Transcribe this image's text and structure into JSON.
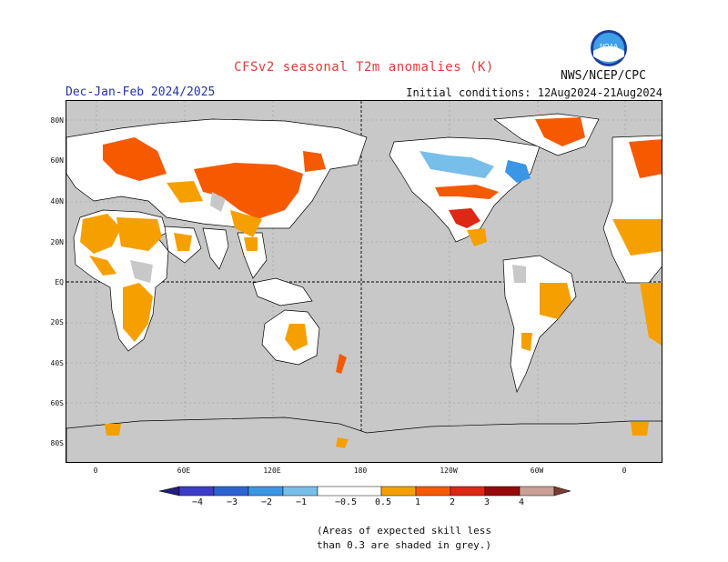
{
  "title": "CFSv2 seasonal T2m anomalies (K)",
  "season": "Dec-Jan-Feb 2024/2025",
  "initial_conditions": "Initial conditions: 12Aug2024-21Aug2024",
  "agency": "NWS/NCEP/CPC",
  "logo_text": "NOAA",
  "lat_labels": [
    "80N",
    "60N",
    "40N",
    "20N",
    "EQ",
    "20S",
    "40S",
    "60S",
    "80S"
  ],
  "lon_labels": [
    "0",
    "60E",
    "120E",
    "180",
    "120W",
    "60W",
    "0"
  ],
  "colorbar": {
    "labels": [
      "−4",
      "−3",
      "−2",
      "−1",
      "−0.5",
      "0.5",
      "1",
      "2",
      "3",
      "4"
    ],
    "colors": [
      "#231e7a",
      "#3c3cc8",
      "#2d64d2",
      "#3c96e6",
      "#78beeb",
      "#ffffff",
      "#f5a000",
      "#f55a00",
      "#dc2814",
      "#960a0a",
      "#c8a096",
      "#783c32"
    ]
  },
  "note_lines": [
    "(Areas of expected skill less",
    "than 0.3 are shaded in grey.)"
  ],
  "colors": {
    "land_grey": "#c8c8c8",
    "title_red": "#e03c3c",
    "season_blue": "#2233aa"
  }
}
